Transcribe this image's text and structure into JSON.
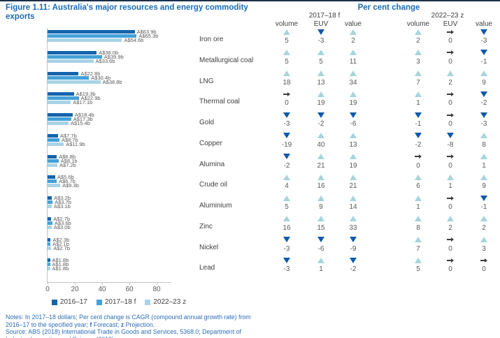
{
  "title_lines": [
    "Figure 1.11: Australia's major resources and energy commodity",
    "exports"
  ],
  "percent_change_header": "Per cent change",
  "period_headers": [
    "2017–18 f",
    "2022–23 z"
  ],
  "column_headers": [
    "volume",
    "EUV",
    "value"
  ],
  "legend": [
    "2016–17",
    "2017–18 f",
    "2022–23 z"
  ],
  "colors": {
    "series": [
      "#1464ac",
      "#44a1d8",
      "#a9d3e6"
    ],
    "trend_up": "#a6d5da",
    "trend_down": "#0f59aa",
    "trend_flat": "#3c3c3c",
    "heading_blue": "#1b6cb5",
    "notes_blue": "#2f6eb8"
  },
  "x_axis": {
    "tick_labels": [
      "0",
      "20",
      "40",
      "60",
      "80"
    ],
    "tick_values": [
      0,
      20,
      40,
      60,
      80
    ],
    "max": 90
  },
  "chart_data": {
    "type": "bar",
    "orientation": "horizontal",
    "title": "Figure 1.11: Australia's major resources and energy commodity exports",
    "unit": "A$ billion (2017–18 dollars)",
    "xlim": [
      0,
      90
    ],
    "categories": [
      "Iron ore",
      "Metallurgical coal",
      "LNG",
      "Thermal coal",
      "Gold",
      "Copper",
      "Alumina",
      "Crude oil",
      "Aluminium",
      "Zinc",
      "Nickel",
      "Lead"
    ],
    "series": [
      {
        "name": "2016–17",
        "values": [
          63.9,
          36.0,
          22.8,
          19.3,
          18.4,
          7.7,
          6.8,
          5.6,
          3.2,
          2.7,
          2.3,
          1.8
        ]
      },
      {
        "name": "2017–18 f",
        "values": [
          65.3,
          39.9,
          30.4,
          22.9,
          17.3,
          8.7,
          8.1,
          6.7,
          3.7,
          3.6,
          2.1,
          1.8
        ]
      },
      {
        "name": "2022–23 z",
        "values": [
          54.6,
          33.6,
          38.8,
          17.1,
          15.4,
          11.9,
          7.2,
          9.3,
          3.1,
          3.0,
          2.7,
          1.8
        ]
      }
    ],
    "bar_labels": [
      [
        "A$63.9b",
        "A$65.3b",
        "A$54.6b"
      ],
      [
        "A$36.0b",
        "A$39.9b",
        "A$33.6b"
      ],
      [
        "A$22.8b",
        "A$30.4b",
        "A$38.8b"
      ],
      [
        "A$19.3b",
        "A$22.9b",
        "A$17.1b"
      ],
      [
        "A$18.4b",
        "A$17.3b",
        "A$15.4b"
      ],
      [
        "A$7.7b",
        "A$8.7b",
        "A$11.9b"
      ],
      [
        "A$6.8b",
        "A$8.1b",
        "A$7.2b"
      ],
      [
        "A$5.6b",
        "A$6.7b",
        "A$9.3b"
      ],
      [
        "A$3.2b",
        "A$3.7b",
        "A$3.1b"
      ],
      [
        "A$2.7b",
        "A$3.6b",
        "A$3.0b"
      ],
      [
        "A$2.3b",
        "A$2.1b",
        "A$2.7b"
      ],
      [
        "A$1.8b",
        "A$1.8b",
        "A$1.8b"
      ]
    ]
  },
  "table": {
    "rows": [
      {
        "commodity": "Iron ore",
        "cells": [
          {
            "dir": "up",
            "val": "5"
          },
          {
            "dir": "down",
            "val": "-3"
          },
          {
            "dir": "up",
            "val": "2"
          },
          {
            "dir": "up",
            "val": "2"
          },
          {
            "dir": "flat",
            "val": "0"
          },
          {
            "dir": "down",
            "val": "-3"
          }
        ]
      },
      {
        "commodity": "Metallurgical coal",
        "cells": [
          {
            "dir": "up",
            "val": "5"
          },
          {
            "dir": "up",
            "val": "5"
          },
          {
            "dir": "up",
            "val": "11"
          },
          {
            "dir": "up",
            "val": "3"
          },
          {
            "dir": "flat",
            "val": "0"
          },
          {
            "dir": "down",
            "val": "-1"
          }
        ]
      },
      {
        "commodity": "LNG",
        "cells": [
          {
            "dir": "up",
            "val": "18"
          },
          {
            "dir": "up",
            "val": "13"
          },
          {
            "dir": "up",
            "val": "34"
          },
          {
            "dir": "up",
            "val": "7"
          },
          {
            "dir": "up",
            "val": "2"
          },
          {
            "dir": "up",
            "val": "9"
          }
        ]
      },
      {
        "commodity": "Thermal coal",
        "cells": [
          {
            "dir": "flat",
            "val": "0"
          },
          {
            "dir": "up",
            "val": "19"
          },
          {
            "dir": "up",
            "val": "19"
          },
          {
            "dir": "up",
            "val": "1"
          },
          {
            "dir": "flat",
            "val": "0"
          },
          {
            "dir": "down",
            "val": "-2"
          }
        ]
      },
      {
        "commodity": "Gold",
        "cells": [
          {
            "dir": "down",
            "val": "-3"
          },
          {
            "dir": "down",
            "val": "-2"
          },
          {
            "dir": "down",
            "val": "-6"
          },
          {
            "dir": "down",
            "val": "-1"
          },
          {
            "dir": "flat",
            "val": "0"
          },
          {
            "dir": "down",
            "val": "-3"
          }
        ]
      },
      {
        "commodity": "Copper",
        "cells": [
          {
            "dir": "down",
            "val": "-19"
          },
          {
            "dir": "up",
            "val": "40"
          },
          {
            "dir": "up",
            "val": "13"
          },
          {
            "dir": "down",
            "val": "-2"
          },
          {
            "dir": "down",
            "val": "-8"
          },
          {
            "dir": "up",
            "val": "8"
          }
        ]
      },
      {
        "commodity": "Alumina",
        "cells": [
          {
            "dir": "down",
            "val": "-2"
          },
          {
            "dir": "up",
            "val": "21"
          },
          {
            "dir": "up",
            "val": "19"
          },
          {
            "dir": "flat",
            "val": "0"
          },
          {
            "dir": "flat",
            "val": "0"
          },
          {
            "dir": "up",
            "val": "1"
          }
        ]
      },
      {
        "commodity": "Crude oil",
        "cells": [
          {
            "dir": "up",
            "val": "4"
          },
          {
            "dir": "up",
            "val": "16"
          },
          {
            "dir": "up",
            "val": "21"
          },
          {
            "dir": "up",
            "val": "6"
          },
          {
            "dir": "up",
            "val": "1"
          },
          {
            "dir": "up",
            "val": "9"
          }
        ]
      },
      {
        "commodity": "Aluminium",
        "cells": [
          {
            "dir": "up",
            "val": "5"
          },
          {
            "dir": "up",
            "val": "9"
          },
          {
            "dir": "up",
            "val": "14"
          },
          {
            "dir": "up",
            "val": "1"
          },
          {
            "dir": "flat",
            "val": "0"
          },
          {
            "dir": "down",
            "val": "-1"
          }
        ]
      },
      {
        "commodity": "Zinc",
        "cells": [
          {
            "dir": "up",
            "val": "16"
          },
          {
            "dir": "up",
            "val": "15"
          },
          {
            "dir": "up",
            "val": "33"
          },
          {
            "dir": "up",
            "val": "8"
          },
          {
            "dir": "up",
            "val": "2"
          },
          {
            "dir": "up",
            "val": "2"
          }
        ]
      },
      {
        "commodity": "Nickel",
        "cells": [
          {
            "dir": "down",
            "val": "-3"
          },
          {
            "dir": "down",
            "val": "-6"
          },
          {
            "dir": "down",
            "val": "-9"
          },
          {
            "dir": "up",
            "val": "7"
          },
          {
            "dir": "flat",
            "val": "0"
          },
          {
            "dir": "up",
            "val": "3"
          }
        ]
      },
      {
        "commodity": "Lead",
        "cells": [
          {
            "dir": "down",
            "val": "-3"
          },
          {
            "dir": "up",
            "val": "1"
          },
          {
            "dir": "down",
            "val": "-2"
          },
          {
            "dir": "up",
            "val": "5"
          },
          {
            "dir": "flat",
            "val": "0"
          },
          {
            "dir": "flat",
            "val": "0"
          }
        ]
      }
    ]
  },
  "notes_lines": [
    [
      {
        "t": "Notes: In 2017–18 dollars; Per cent change is CAGR (compound annual growth rate) from"
      }
    ],
    [
      {
        "t": "2016–17 to the specified year; "
      },
      {
        "t": "f",
        "b": 1
      },
      {
        "t": " Forecast; "
      },
      {
        "t": "z",
        "b": 1
      },
      {
        "t": " Projection."
      }
    ],
    [
      {
        "t": "Source: ABS (2018) International Trade in Goods and Services, 5368.0; Department of"
      }
    ],
    [
      {
        "t": "Industry, Innovation and Science (2018)"
      }
    ]
  ]
}
